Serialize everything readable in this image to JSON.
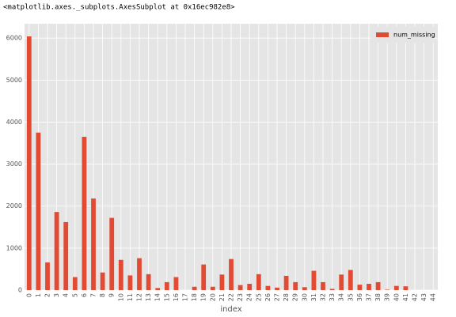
{
  "output_text": "<matplotlib.axes._subplots.AxesSubplot at 0x16ec982e8>",
  "chart_data": {
    "type": "bar",
    "x_label": "index",
    "categories": [
      "0",
      "1",
      "2",
      "3",
      "4",
      "5",
      "6",
      "7",
      "8",
      "9",
      "10",
      "11",
      "12",
      "13",
      "14",
      "15",
      "16",
      "17",
      "18",
      "19",
      "20",
      "21",
      "22",
      "23",
      "24",
      "25",
      "26",
      "27",
      "28",
      "29",
      "30",
      "31",
      "32",
      "33",
      "34",
      "35",
      "36",
      "37",
      "38",
      "39",
      "40",
      "41",
      "42",
      "43",
      "44"
    ],
    "series": [
      {
        "name": "num_missing",
        "color": "#e24a33",
        "values": [
          6040,
          3750,
          660,
          1860,
          1620,
          310,
          3650,
          2180,
          420,
          1720,
          720,
          350,
          760,
          380,
          50,
          190,
          310,
          0,
          80,
          610,
          80,
          370,
          740,
          120,
          150,
          380,
          100,
          60,
          340,
          190,
          70,
          460,
          190,
          30,
          370,
          480,
          130,
          150,
          190,
          10,
          100,
          90,
          0,
          0,
          0
        ]
      }
    ],
    "ylim": [
      0,
      6342
    ],
    "yticks": [
      0,
      1000,
      2000,
      3000,
      4000,
      5000,
      6000
    ],
    "grid": true,
    "legend": "upper right"
  }
}
